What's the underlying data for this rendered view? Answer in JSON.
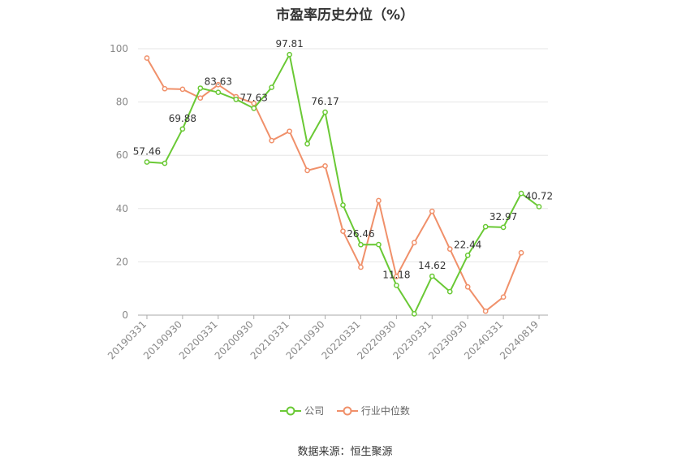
{
  "chart_data": {
    "type": "line",
    "title": "市盈率历史分位（%）",
    "x": [
      "20190331",
      "20190630",
      "20190930",
      "20191231",
      "20200331",
      "20200630",
      "20200930",
      "20201231",
      "20210331",
      "20210630",
      "20210930",
      "20211231",
      "20220331",
      "20220630",
      "20220930",
      "20221231",
      "20230331",
      "20230630",
      "20230930",
      "20231231",
      "20240331",
      "20240630",
      "20240819"
    ],
    "xticks": [
      "20190331",
      "20190930",
      "20200331",
      "20200930",
      "20210331",
      "20210930",
      "20220331",
      "20220930",
      "20230331",
      "20230930",
      "20240331",
      "20240819"
    ],
    "ylim": [
      0,
      100
    ],
    "yticks": [
      0,
      20,
      40,
      60,
      80,
      100
    ],
    "grid": true,
    "legend_position": "bottom",
    "series": [
      {
        "name": "公司",
        "color": "#6ac935",
        "values": [
          57.46,
          57.0,
          69.88,
          85.2,
          83.63,
          81.0,
          77.63,
          85.5,
          97.81,
          64.3,
          76.17,
          41.3,
          26.46,
          26.5,
          11.18,
          0.5,
          14.62,
          8.8,
          22.44,
          33.2,
          32.97,
          45.7,
          40.72
        ],
        "labels": [
          "57.46",
          "",
          "69.88",
          "",
          "83.63",
          "",
          "77.63",
          "",
          "97.81",
          "",
          "76.17",
          "",
          "26.46",
          "",
          "11.18",
          "",
          "14.62",
          "",
          "22.44",
          "",
          "32.97",
          "",
          "40.72"
        ]
      },
      {
        "name": "行业中位数",
        "color": "#f0906a",
        "values": [
          96.5,
          85.0,
          84.8,
          81.5,
          86.5,
          82.0,
          79.5,
          65.5,
          69.0,
          54.3,
          56.0,
          31.5,
          18.0,
          43.0,
          14.5,
          27.2,
          39.0,
          24.8,
          10.6,
          1.5,
          6.8,
          23.4,
          null
        ]
      }
    ]
  },
  "source": "数据来源：恒生聚源"
}
